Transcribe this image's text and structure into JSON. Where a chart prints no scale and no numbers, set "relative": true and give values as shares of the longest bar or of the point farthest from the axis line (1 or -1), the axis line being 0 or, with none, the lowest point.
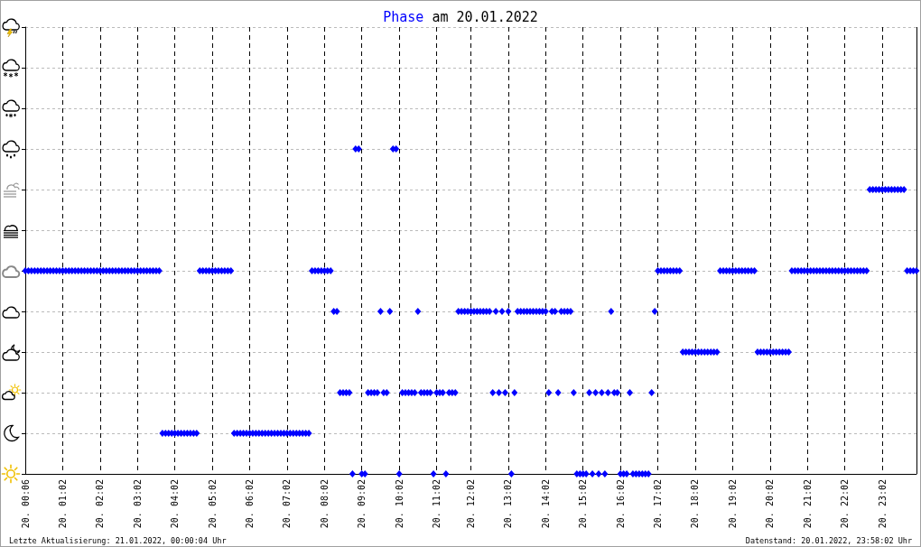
{
  "chart_data": {
    "type": "scatter",
    "title": "am 20.01.2022",
    "marker": "diamond",
    "grid": true,
    "relative": true,
    "annotations": [
      "Letzte Aktualisierung: 21.01.2022, 00:00:04 Uhr",
      "Datenstand: 20.01.2022, 23:58:02 Uhr"
    ],
    "categories": [
      "20. 00:06",
      null,
      null,
      null,
      null,
      null,
      null,
      null,
      null,
      null,
      null,
      null,
      "20. 01:02",
      null,
      null,
      null,
      null,
      null,
      null,
      null,
      null,
      null,
      null,
      null,
      "20. 02:02",
      null,
      null,
      null,
      null,
      null,
      null,
      null,
      null,
      null,
      null,
      null,
      "20. 03:02",
      null,
      null,
      null,
      null,
      null,
      null,
      null,
      null,
      null,
      null,
      null,
      "20. 04:02",
      null,
      null,
      null,
      null,
      null,
      null,
      null,
      null,
      null,
      null,
      null,
      "20. 05:02",
      null,
      null,
      null,
      null,
      null,
      null,
      null,
      null,
      null,
      null,
      null,
      "20. 06:02",
      null,
      null,
      null,
      null,
      null,
      null,
      null,
      null,
      null,
      null,
      null,
      "20. 07:02",
      null,
      null,
      null,
      null,
      null,
      null,
      null,
      null,
      null,
      null,
      null,
      "20. 08:02",
      null,
      null,
      null,
      null,
      null,
      null,
      null,
      null,
      null,
      null,
      null,
      "20. 09:02",
      null,
      null,
      null,
      null,
      null,
      null,
      null,
      null,
      null,
      null,
      null,
      "20. 10:02",
      null,
      null,
      null,
      null,
      null,
      null,
      null,
      null,
      null,
      null,
      null,
      "20. 11:02",
      null,
      null,
      null,
      null,
      null,
      null,
      null,
      null,
      null,
      null,
      "20. 12:02",
      null,
      null,
      null,
      null,
      null,
      null,
      null,
      null,
      null,
      null,
      null,
      "20. 13:02",
      null,
      null,
      null,
      null,
      null,
      null,
      null,
      null,
      null,
      null,
      null,
      "20. 14:02",
      null,
      null,
      null,
      null,
      null,
      null,
      null,
      null,
      null,
      null,
      null,
      "20. 15:02",
      null,
      null,
      null,
      null,
      null,
      null,
      null,
      null,
      null,
      null,
      null,
      "20. 16:02",
      null,
      null,
      null,
      null,
      null,
      null,
      null,
      null,
      null,
      null,
      null,
      "20. 17:02",
      null,
      null,
      null,
      null,
      null,
      null,
      null,
      null,
      null,
      null,
      null,
      "20. 18:02",
      null,
      null,
      null,
      null,
      null,
      null,
      null,
      null,
      null,
      null,
      null,
      "20. 19:02",
      null,
      null,
      null,
      null,
      null,
      null,
      null,
      null,
      null,
      null,
      null,
      "20. 20:02",
      null,
      null,
      null,
      null,
      null,
      null,
      null,
      null,
      null,
      null,
      null,
      "20. 21:02",
      null,
      null,
      null,
      null,
      null,
      null,
      null,
      null,
      null,
      null,
      null,
      "20. 22:02",
      null,
      null,
      null,
      null,
      null,
      null,
      null,
      null,
      null,
      null,
      null,
      "20. 23:02",
      null,
      null,
      null,
      null,
      null,
      null,
      null,
      null,
      null,
      null,
      null
    ],
    "series": [
      {
        "name": "Phase",
        "color": "#0000ff",
        "values": [
          0.625,
          0.625,
          0.625,
          0.625,
          0.625,
          0.625,
          0.625,
          0.625,
          0.625,
          0.625,
          0.625,
          0.625,
          0.625,
          0.625,
          0.625,
          0.625,
          0.625,
          0.625,
          0.625,
          0.625,
          0.625,
          0.625,
          0.625,
          0.625,
          0.625,
          0.625,
          0.625,
          0.625,
          0.625,
          0.625,
          0.625,
          0.625,
          0.625,
          0.625,
          0.625,
          0.625,
          0.625,
          0.625,
          0.625,
          0.625,
          0.625,
          0.625,
          0.625,
          0.625,
          0.125,
          0.125,
          0.125,
          0.125,
          0.125,
          0.125,
          0.125,
          0.125,
          0.125,
          0.125,
          0.125,
          0.125,
          0.625,
          0.625,
          0.625,
          0.625,
          0.625,
          0.625,
          0.625,
          0.625,
          0.625,
          0.625,
          0.625,
          0.125,
          0.125,
          0.125,
          0.125,
          0.125,
          0.125,
          0.125,
          0.125,
          0.125,
          0.125,
          0.125,
          0.125,
          0.125,
          0.125,
          0.125,
          0.125,
          0.125,
          0.125,
          0.125,
          0.125,
          0.125,
          0.125,
          0.125,
          0.125,
          0.125,
          0.625,
          0.625,
          0.625,
          0.625,
          0.625,
          0.625,
          0.625,
          0.5,
          0.5,
          0.25,
          0.25,
          0.25,
          0.25,
          0,
          1,
          1,
          0,
          0,
          0.25,
          0.25,
          0.25,
          0.25,
          0.5,
          0.25,
          0.25,
          0.5,
          1,
          1,
          0,
          0.25,
          0.25,
          0.25,
          0.25,
          0.25,
          0.5,
          0.25,
          0.25,
          0.25,
          0.25,
          0,
          0.25,
          0.25,
          0.25,
          0,
          0.25,
          0.25,
          0.25,
          0.5,
          0.5,
          0.5,
          0.5,
          0.5,
          0.5,
          0.5,
          0.5,
          0.5,
          0.5,
          0.5,
          0.25,
          0.5,
          0.25,
          0.5,
          0.25,
          0.5,
          0,
          0.25,
          0.5,
          0.5,
          0.5,
          0.5,
          0.5,
          0.5,
          0.5,
          0.5,
          0.5,
          0.5,
          0.25,
          0.5,
          0.5,
          0.25,
          0.5,
          0.5,
          0.5,
          0.5,
          0.25,
          0,
          0,
          0,
          0,
          0.25,
          0,
          0.25,
          0,
          0.25,
          0,
          0.25,
          0.5,
          0.25,
          0.25,
          0,
          0,
          0,
          0.25,
          0,
          0,
          0,
          0,
          0,
          0,
          0.25,
          0.5,
          0.625,
          0.625,
          0.625,
          0.625,
          0.625,
          0.625,
          0.625,
          0.625,
          0.375,
          0.375,
          0.375,
          0.375,
          0.375,
          0.375,
          0.375,
          0.375,
          0.375,
          0.375,
          0.375,
          0.375,
          0.625,
          0.625,
          0.625,
          0.625,
          0.625,
          0.625,
          0.625,
          0.625,
          0.625,
          0.625,
          0.625,
          0.625,
          0.375,
          0.375,
          0.375,
          0.375,
          0.375,
          0.375,
          0.375,
          0.375,
          0.375,
          0.375,
          0.375,
          0.625,
          0.625,
          0.625,
          0.625,
          0.625,
          0.625,
          0.625,
          0.625,
          0.625,
          0.625,
          0.625,
          0.625,
          0.625,
          0.625,
          0.625,
          0.625,
          0.625,
          0.625,
          0.625,
          0.625,
          0.625,
          0.625,
          0.625,
          0.625,
          0.625,
          0.875,
          0.875,
          0.875,
          0.875,
          0.875,
          0.875,
          0.875,
          0.875,
          0.875,
          0.875,
          0.875,
          0.875,
          0.625,
          0.625,
          0.625,
          0.625
        ]
      }
    ]
  }
}
